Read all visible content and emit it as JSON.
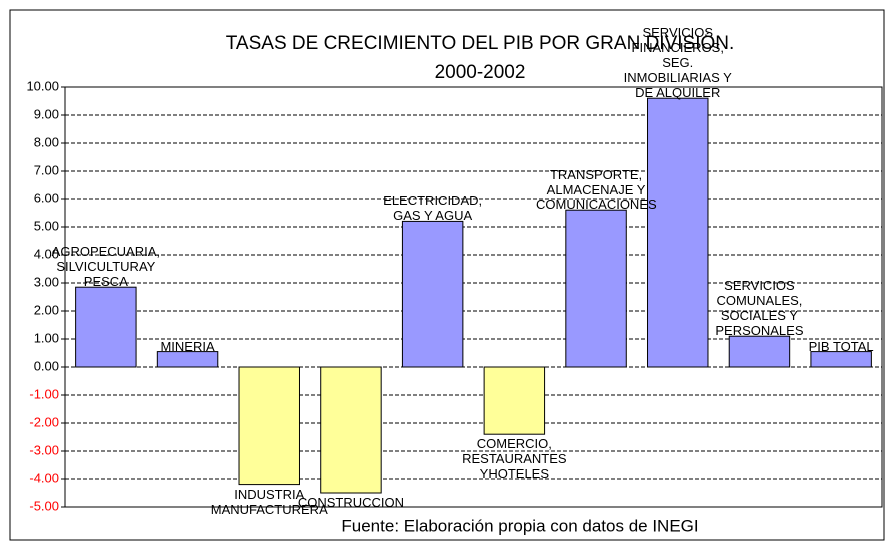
{
  "chart_data": {
    "type": "bar",
    "title": "TASAS DE CRECIMIENTO  DEL PIB POR GRAN DIVISIÓN.",
    "subtitle": "2000-2002",
    "source": "Fuente: Elaboración propia con datos de INEGI",
    "categories": [
      "AGROPECUARIA, SILVICULTURAY PESCA",
      "MINERIA",
      "INDUSTRIA MANUFACTURERA",
      "CONSTRUCCION",
      "ELECTRICIDAD, GAS Y AGUA",
      "COMERCIO, RESTAURANTES YHOTELES",
      "TRANSPORTE, ALMACENAJE Y COMUNICACIONES",
      "SERVICIOS FINANCIEROS, SEG. INMOBILIARIAS Y DE ALQUILER",
      "SERVICIOS COMUNALES, SOCIALES Y PERSONALES",
      "PIB TOTAL"
    ],
    "values": [
      2.85,
      0.55,
      -4.2,
      -4.5,
      5.2,
      -2.4,
      5.6,
      9.6,
      1.1,
      0.55
    ],
    "positive_color": "#9999ff",
    "negative_color": "#ffff99",
    "negative_tick_color": "#ff0000",
    "ylim": [
      -5,
      10
    ],
    "yticks": [
      {
        "value": -5,
        "label": "-5.00"
      },
      {
        "value": -4,
        "label": "-4.00"
      },
      {
        "value": -3,
        "label": "-3.00"
      },
      {
        "value": -2,
        "label": "-2.00"
      },
      {
        "value": -1,
        "label": "-1.00"
      },
      {
        "value": 0,
        "label": "0.00"
      },
      {
        "value": 1,
        "label": "1.00"
      },
      {
        "value": 2,
        "label": "2.00"
      },
      {
        "value": 3,
        "label": "3.00"
      },
      {
        "value": 4,
        "label": "4.00"
      },
      {
        "value": 5,
        "label": "5.00"
      },
      {
        "value": 6,
        "label": "6.00"
      },
      {
        "value": 7,
        "label": "7.00"
      },
      {
        "value": 8,
        "label": "8.00"
      },
      {
        "value": 9,
        "label": "9.00"
      },
      {
        "value": 10,
        "label": "10.00"
      }
    ],
    "grid": true
  }
}
